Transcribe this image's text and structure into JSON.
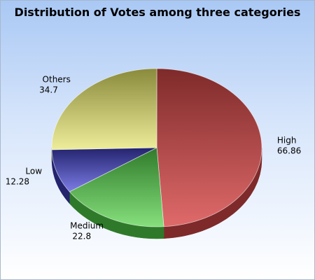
{
  "chart_data": {
    "type": "pie",
    "title": "Distribution of Votes among three categories",
    "slices": [
      {
        "label": "High",
        "value": 66.86,
        "value_label": "66.86",
        "color": "#e06a6a",
        "dark": "#7e2a2a"
      },
      {
        "label": "Medium",
        "value": 22.8,
        "value_label": "22.8",
        "color": "#86e07c",
        "dark": "#2f7a2a"
      },
      {
        "label": "Low",
        "value": 12.28,
        "value_label": "12.28",
        "color": "#7c7ce6",
        "dark": "#23236e"
      },
      {
        "label": "Others",
        "value": 34.7,
        "value_label": "34.7",
        "color": "#eded9a",
        "dark": "#8a8a3c"
      }
    ],
    "legend": "none",
    "style": "3d-pie"
  }
}
